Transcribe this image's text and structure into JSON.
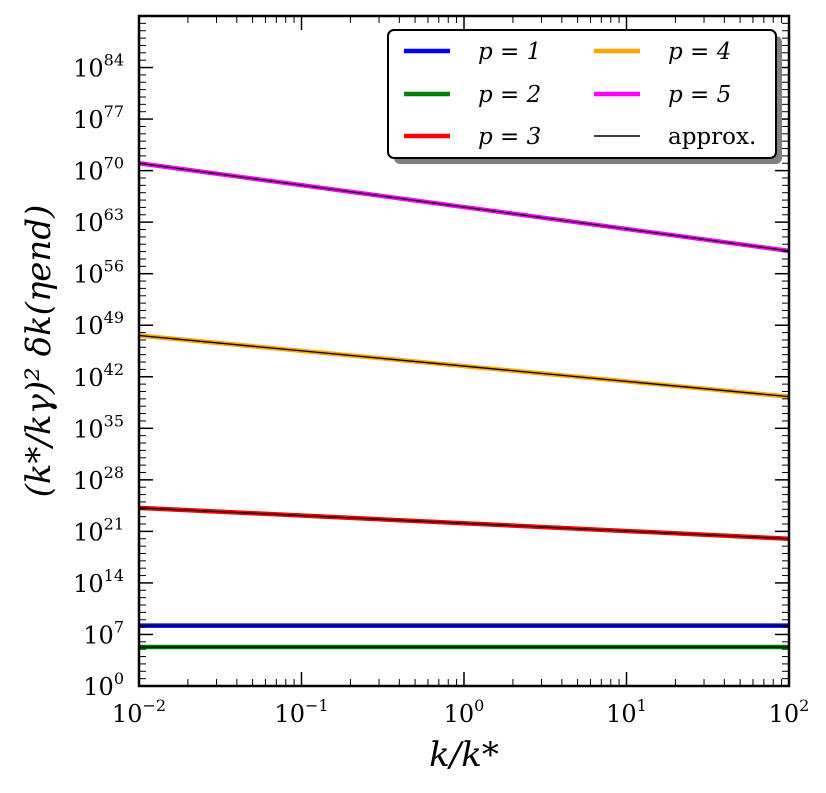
{
  "chart_data": {
    "type": "line",
    "xscale": "log",
    "yscale": "log",
    "xlim": [
      0.01,
      100
    ],
    "ylim": [
      1,
      1e+91
    ],
    "xlabel": "k/k*",
    "ylabel": "(k*/kγ)² δk(ηend)",
    "x_ticks": [
      {
        "base": "10",
        "exp": "−2"
      },
      {
        "base": "10",
        "exp": "−1"
      },
      {
        "base": "10",
        "exp": "0"
      },
      {
        "base": "10",
        "exp": "1"
      },
      {
        "base": "10",
        "exp": "2"
      }
    ],
    "y_ticks": [
      {
        "base": "10",
        "exp": "0"
      },
      {
        "base": "10",
        "exp": "7"
      },
      {
        "base": "10",
        "exp": "14"
      },
      {
        "base": "10",
        "exp": "21"
      },
      {
        "base": "10",
        "exp": "28"
      },
      {
        "base": "10",
        "exp": "35"
      },
      {
        "base": "10",
        "exp": "42"
      },
      {
        "base": "10",
        "exp": "49"
      },
      {
        "base": "10",
        "exp": "56"
      },
      {
        "base": "10",
        "exp": "63"
      },
      {
        "base": "10",
        "exp": "70"
      },
      {
        "base": "10",
        "exp": "77"
      },
      {
        "base": "10",
        "exp": "84"
      }
    ],
    "series": [
      {
        "name": "p = 1",
        "color": "#0000ff",
        "x": [
          0.01,
          100
        ],
        "log10_y": [
          8.2,
          8.2
        ]
      },
      {
        "name": "p = 2",
        "color": "#008000",
        "x": [
          0.01,
          100
        ],
        "log10_y": [
          5.3,
          5.3
        ]
      },
      {
        "name": "p = 3",
        "color": "#ff0000",
        "x": [
          0.01,
          100
        ],
        "log10_y": [
          24.2,
          20.0
        ]
      },
      {
        "name": "p = 4",
        "color": "#ffa500",
        "x": [
          0.01,
          100
        ],
        "log10_y": [
          47.6,
          39.3
        ]
      },
      {
        "name": "p = 5",
        "color": "#ff00ff",
        "x": [
          0.01,
          100
        ],
        "log10_y": [
          71.0,
          59.1
        ]
      },
      {
        "name": "approx.",
        "color": "#000000",
        "x": [
          0.01,
          100
        ],
        "log10_y": null
      }
    ],
    "legend": {
      "position": "top-right",
      "entries": [
        "p = 1",
        "p = 4",
        "p = 2",
        "p = 5",
        "p = 3",
        "approx."
      ]
    }
  }
}
